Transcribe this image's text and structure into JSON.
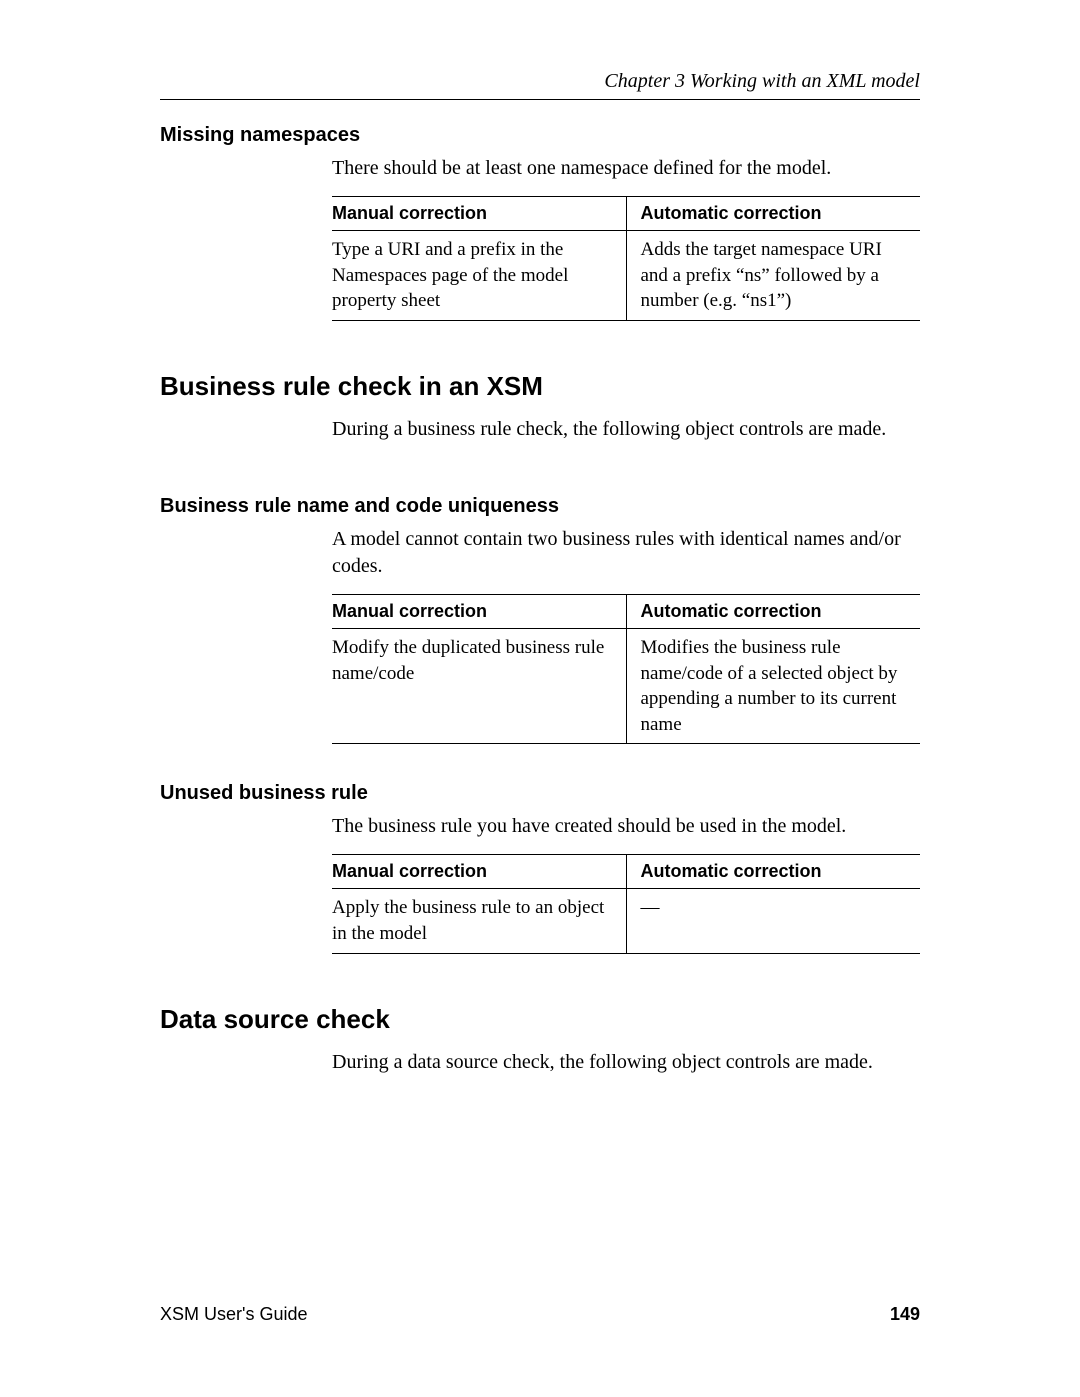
{
  "header": {
    "chapter": "Chapter 3    Working with an XML model"
  },
  "sections": {
    "missing_ns": {
      "title": "Missing namespaces",
      "intro": "There should be at least one namespace defined for the model.",
      "table": {
        "col1": "Manual correction",
        "col2": "Automatic correction",
        "manual": "Type a URI and a prefix in the Namespaces page of the model property sheet",
        "auto": "Adds the target namespace URI and a prefix “ns” followed by a number (e.g. “ns1”)"
      }
    },
    "br_check": {
      "title": "Business rule check in an XSM",
      "intro": "During a business rule check, the following object controls are made."
    },
    "br_uniq": {
      "title": "Business rule name and code uniqueness",
      "intro": "A model cannot contain two business rules with identical names and/or codes.",
      "table": {
        "col1": "Manual correction",
        "col2": "Automatic correction",
        "manual": "Modify the duplicated business rule name/code",
        "auto": "Modifies the business rule name/code of a selected object by appending a number to its current name"
      }
    },
    "br_unused": {
      "title": "Unused business rule",
      "intro": "The business rule you have created should be used in the model.",
      "table": {
        "col1": "Manual correction",
        "col2": "Automatic correction",
        "manual": "Apply the business rule to an object in the model",
        "auto": "—"
      }
    },
    "ds_check": {
      "title": "Data source check",
      "intro": "During a data source check, the following object controls are made."
    }
  },
  "footer": {
    "guide": "XSM User's Guide",
    "page": "149"
  }
}
